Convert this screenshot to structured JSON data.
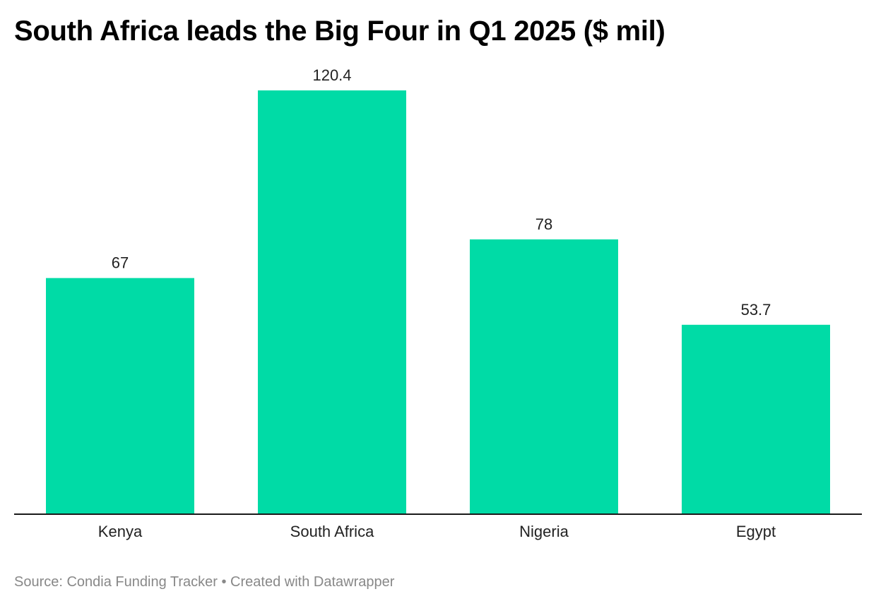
{
  "chart_data": {
    "type": "bar",
    "title": "South Africa leads the Big Four in Q1 2025 ($ mil)",
    "categories": [
      "Kenya",
      "South Africa",
      "Nigeria",
      "Egypt"
    ],
    "values": [
      67,
      120.4,
      78,
      53.7
    ],
    "value_labels": [
      "67",
      "120.4",
      "78",
      "53.7"
    ],
    "xlabel": "",
    "ylabel": "",
    "ylim": [
      0,
      120.4
    ],
    "grid": false,
    "bar_color": "#00dba6",
    "axis_color": "#1a1a1a"
  },
  "footer": {
    "source": "Source: Condia Funding Tracker • Created with Datawrapper"
  }
}
